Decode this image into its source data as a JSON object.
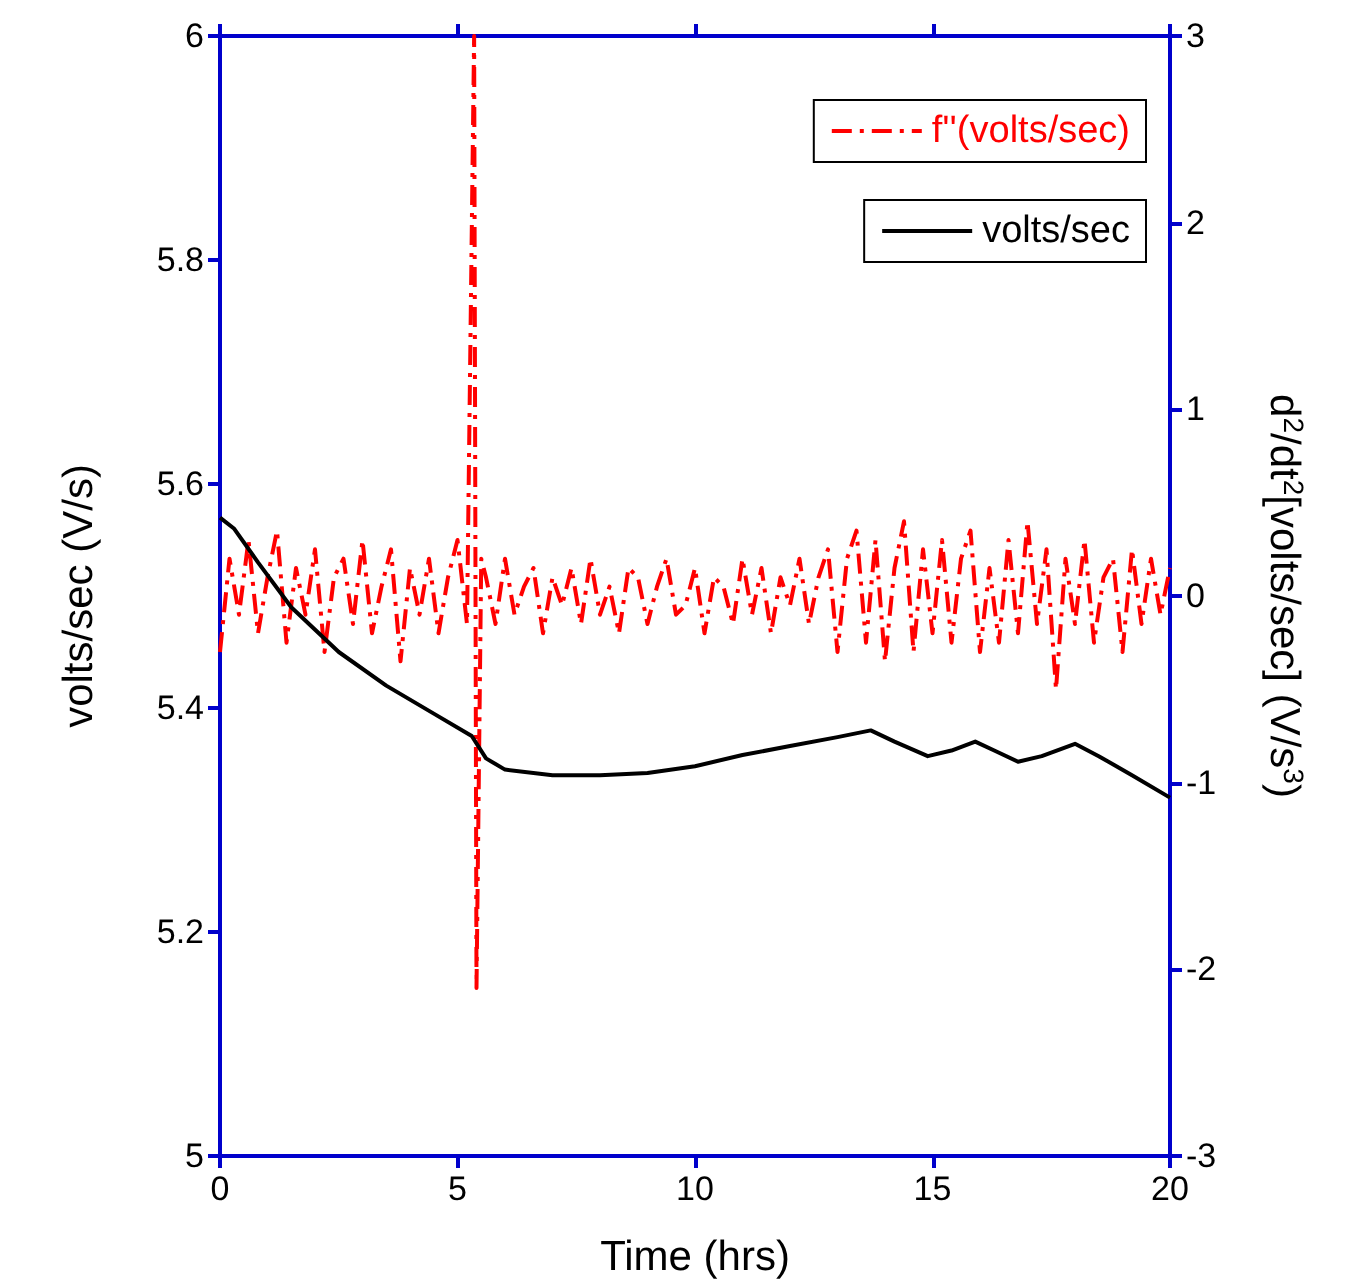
{
  "chart_data": {
    "type": "line",
    "xlabel": "Time (hrs)",
    "ylabel": "volts/sec (V/s)",
    "y2label": "d$^{2}$/dt$^{2}$[volts/sec] (V/s$^{3}$)",
    "xlim": [
      0,
      20
    ],
    "xticks": [
      0,
      5,
      10,
      15,
      20
    ],
    "ylim": [
      5,
      6
    ],
    "yticks": [
      5,
      5.2,
      5.4,
      5.6,
      5.8,
      6
    ],
    "y2lim": [
      -3,
      3
    ],
    "y2ticks": [
      -3,
      -2,
      -1,
      0,
      1,
      2,
      3
    ],
    "legend": "top right",
    "grid": false,
    "marker": "none",
    "series": [
      {
        "name": "f''(volts/sec)",
        "color": "#ff0000",
        "axis": "y2",
        "line_style": "dashed",
        "x": [
          0,
          0.2,
          0.4,
          0.6,
          0.8,
          1,
          1.2,
          1.4,
          1.6,
          1.8,
          2,
          2.2,
          2.4,
          2.6,
          2.8,
          3,
          3.2,
          3.4,
          3.6,
          3.8,
          4,
          4.2,
          4.4,
          4.6,
          4.8,
          5,
          5.2,
          5.35,
          5.4,
          5.5,
          5.6,
          5.8,
          6,
          6.2,
          6.4,
          6.6,
          6.8,
          7,
          7.2,
          7.4,
          7.6,
          7.8,
          8,
          8.2,
          8.4,
          8.6,
          8.8,
          9,
          9.2,
          9.4,
          9.6,
          9.8,
          10,
          10.2,
          10.4,
          10.6,
          10.8,
          11,
          11.2,
          11.4,
          11.6,
          11.8,
          12,
          12.2,
          12.4,
          12.6,
          12.8,
          13,
          13.2,
          13.4,
          13.6,
          13.8,
          14,
          14.2,
          14.4,
          14.6,
          14.8,
          15,
          15.2,
          15.4,
          15.6,
          15.8,
          16,
          16.2,
          16.4,
          16.6,
          16.8,
          17,
          17.2,
          17.4,
          17.6,
          17.8,
          18,
          18.2,
          18.4,
          18.6,
          18.8,
          19,
          19.2,
          19.4,
          19.6,
          19.8,
          20
        ],
        "values": [
          -0.3,
          0.2,
          -0.1,
          0.3,
          -0.2,
          0.1,
          0.35,
          -0.25,
          0.15,
          -0.1,
          0.25,
          -0.3,
          0.1,
          0.2,
          -0.15,
          0.3,
          -0.2,
          0.05,
          0.25,
          -0.35,
          0.15,
          -0.1,
          0.2,
          -0.2,
          0.1,
          0.3,
          -0.15,
          3,
          -2.1,
          0.2,
          0.1,
          -0.15,
          0.2,
          -0.1,
          0.05,
          0.15,
          -0.2,
          0.1,
          -0.05,
          0.15,
          -0.15,
          0.2,
          -0.1,
          0.05,
          -0.2,
          0.15,
          0.1,
          -0.15,
          0.05,
          0.2,
          -0.1,
          -0.05,
          0.15,
          -0.2,
          0.1,
          0.05,
          -0.15,
          0.2,
          -0.1,
          0.15,
          -0.2,
          0.1,
          -0.05,
          0.2,
          -0.15,
          0.1,
          0.25,
          -0.3,
          0.2,
          0.35,
          -0.25,
          0.3,
          -0.35,
          0.15,
          0.4,
          -0.3,
          0.25,
          -0.2,
          0.3,
          -0.25,
          0.2,
          0.35,
          -0.3,
          0.15,
          -0.25,
          0.3,
          -0.2,
          0.4,
          -0.15,
          0.25,
          -0.5,
          0.2,
          -0.15,
          0.3,
          -0.25,
          0.1,
          0.2,
          -0.3,
          0.25,
          -0.15,
          0.2,
          -0.1,
          0.15
        ]
      },
      {
        "name": "volts/sec",
        "color": "#000000",
        "line_style": "solid",
        "x": [
          0,
          0.3,
          0.8,
          1.5,
          2.5,
          3.5,
          4.5,
          5.3,
          5.6,
          6,
          7,
          8,
          9,
          10,
          11,
          12,
          13,
          13.7,
          14.2,
          14.9,
          15.4,
          15.9,
          16.3,
          16.8,
          17.3,
          18,
          18.5,
          19.2,
          20
        ],
        "values": [
          5.57,
          5.56,
          5.53,
          5.49,
          5.45,
          5.42,
          5.395,
          5.375,
          5.355,
          5.345,
          5.34,
          5.34,
          5.342,
          5.348,
          5.358,
          5.366,
          5.374,
          5.38,
          5.37,
          5.357,
          5.362,
          5.37,
          5.362,
          5.352,
          5.357,
          5.368,
          5.357,
          5.34,
          5.32
        ]
      }
    ]
  }
}
